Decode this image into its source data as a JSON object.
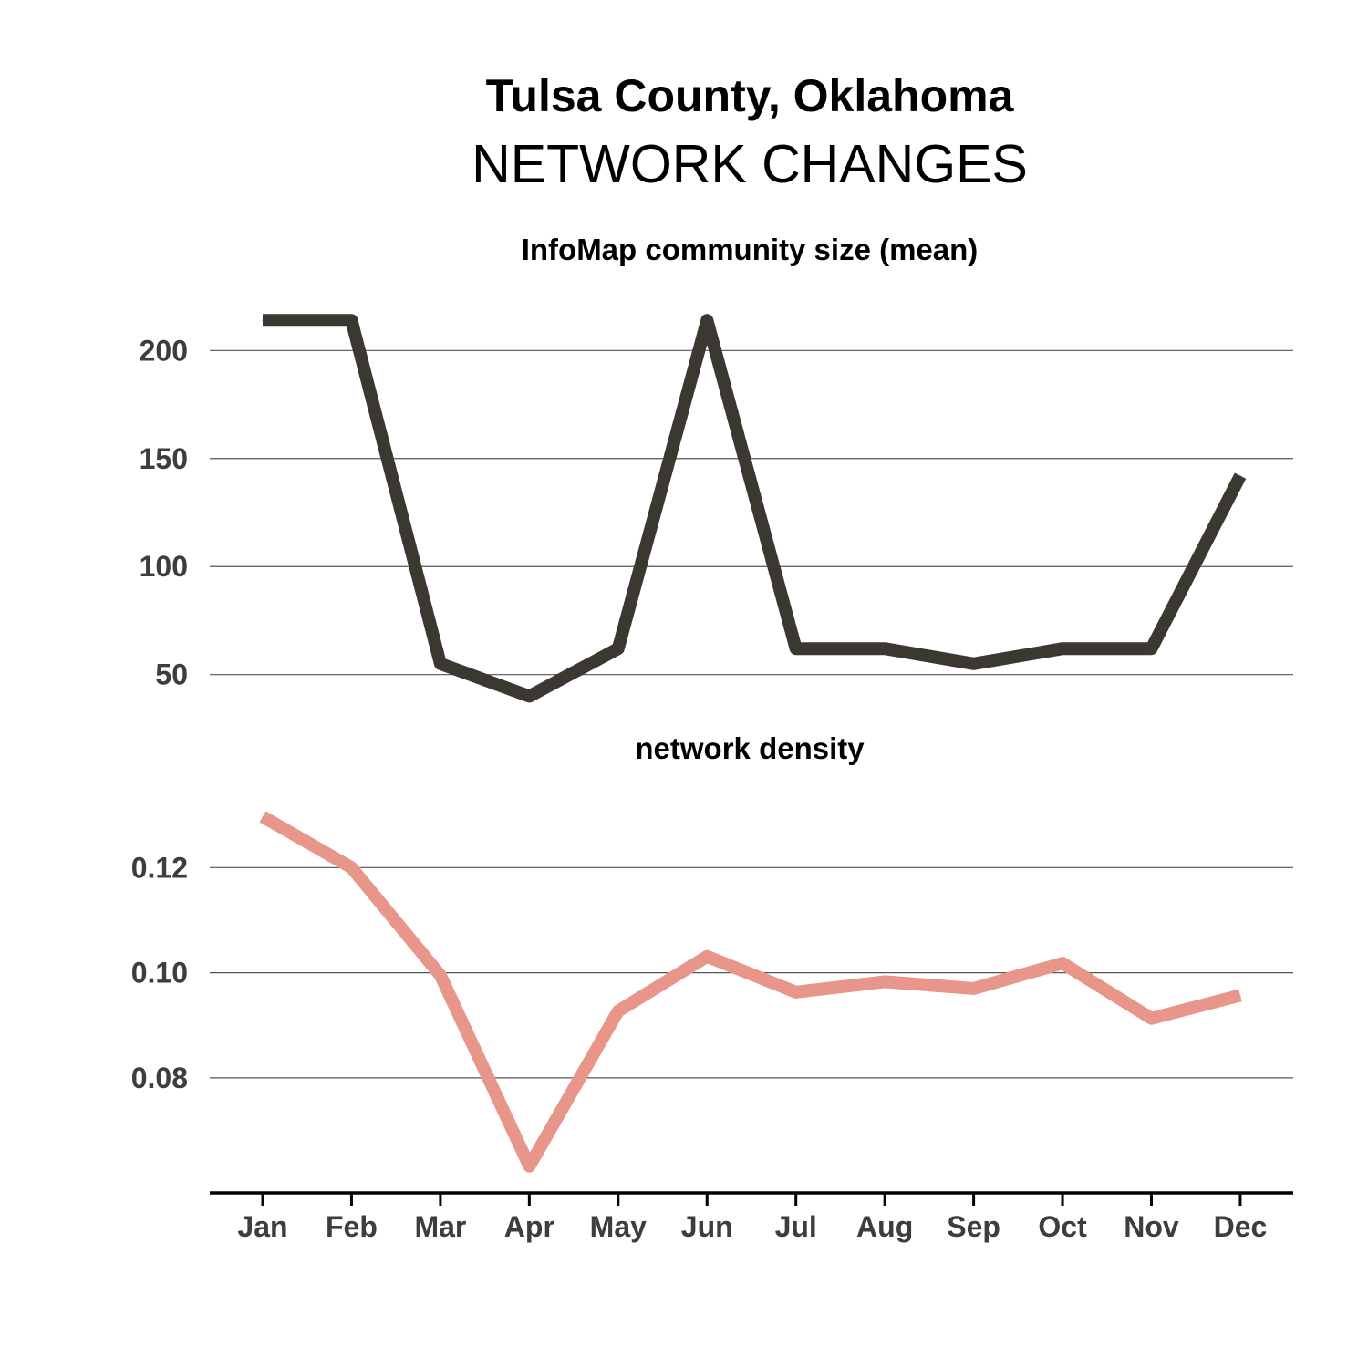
{
  "title": "Tulsa County, Oklahoma",
  "subtitle": "NETWORK CHANGES",
  "chart_data": [
    {
      "type": "line",
      "title": "InfoMap community size (mean)",
      "xlabel": "",
      "ylabel": "",
      "categories": [
        "Jan",
        "Feb",
        "Mar",
        "Apr",
        "May",
        "Jun",
        "Jul",
        "Aug",
        "Sep",
        "Oct",
        "Nov",
        "Dec"
      ],
      "series": [
        {
          "values": [
            214,
            214,
            55,
            40,
            62,
            214,
            62,
            62,
            55,
            62,
            62,
            142
          ],
          "color": "#3a3830"
        }
      ],
      "yticks": [
        50,
        100,
        150,
        200
      ],
      "ytick_labels": [
        "50",
        "100",
        "150",
        "200"
      ],
      "ylim": [
        22,
        228
      ],
      "grid": true,
      "legend": "none"
    },
    {
      "type": "line",
      "title": "network density",
      "xlabel": "",
      "ylabel": "",
      "categories": [
        "Jan",
        "Feb",
        "Mar",
        "Apr",
        "May",
        "Jun",
        "Jul",
        "Aug",
        "Sep",
        "Oct",
        "Nov",
        "Dec"
      ],
      "series": [
        {
          "values": [
            0.1297,
            0.12,
            0.0995,
            0.0632,
            0.0927,
            0.1031,
            0.0963,
            0.0983,
            0.097,
            0.1018,
            0.0913,
            0.0957
          ],
          "color": "#e8958a"
        }
      ],
      "yticks": [
        0.08,
        0.1,
        0.12
      ],
      "ytick_labels": [
        "0.08",
        "0.10",
        "0.12"
      ],
      "ylim": [
        0.0595,
        0.1355
      ],
      "grid": true,
      "legend": "none"
    }
  ]
}
